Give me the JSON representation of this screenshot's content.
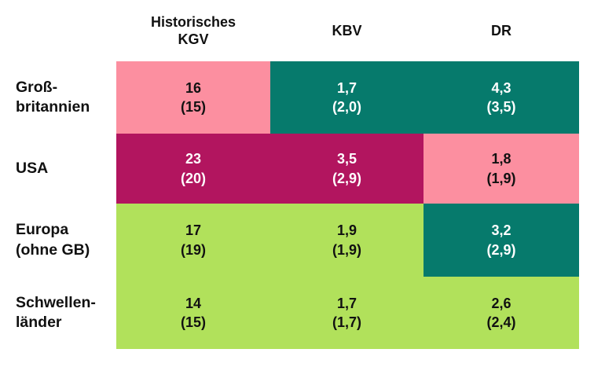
{
  "colors": {
    "pink": {
      "bg": "#FC8FA0",
      "fg": "#111111"
    },
    "magenta": {
      "bg": "#B2155F",
      "fg": "#ffffff"
    },
    "teal": {
      "bg": "#067A6C",
      "fg": "#ffffff"
    },
    "green": {
      "bg": "#B1E15B",
      "fg": "#111111"
    }
  },
  "table": {
    "columns": [
      {
        "label": "Historisches\nKGV"
      },
      {
        "label": "KBV"
      },
      {
        "label": "DR"
      }
    ],
    "rows": [
      {
        "label": "Groß-\nbritannien",
        "cells": [
          {
            "value": "16",
            "prev": "(15)",
            "bg": "pink"
          },
          {
            "value": "1,7",
            "prev": "(2,0)",
            "bg": "teal"
          },
          {
            "value": "4,3",
            "prev": "(3,5)",
            "bg": "teal"
          }
        ]
      },
      {
        "label": "USA",
        "cells": [
          {
            "value": "23",
            "prev": "(20)",
            "bg": "magenta"
          },
          {
            "value": "3,5",
            "prev": "(2,9)",
            "bg": "magenta"
          },
          {
            "value": "1,8",
            "prev": "(1,9)",
            "bg": "pink"
          }
        ]
      },
      {
        "label": "Europa\n(ohne GB)",
        "cells": [
          {
            "value": "17",
            "prev": "(19)",
            "bg": "green"
          },
          {
            "value": "1,9",
            "prev": "(1,9)",
            "bg": "green"
          },
          {
            "value": "3,2",
            "prev": "(2,9)",
            "bg": "teal"
          }
        ]
      },
      {
        "label": "Schwellen-\nländer",
        "cells": [
          {
            "value": "14",
            "prev": "(15)",
            "bg": "green"
          },
          {
            "value": "1,7",
            "prev": "(1,7)",
            "bg": "green"
          },
          {
            "value": "2,6",
            "prev": "(2,4)",
            "bg": "green"
          }
        ]
      }
    ]
  },
  "chart_data": {
    "type": "heatmap",
    "rows": [
      "Großbritannien",
      "USA",
      "Europa (ohne GB)",
      "Schwellenländer"
    ],
    "columns": [
      "Historisches KGV",
      "KBV",
      "DR"
    ],
    "current_values": [
      [
        16,
        1.7,
        4.3
      ],
      [
        23,
        3.5,
        1.8
      ],
      [
        17,
        1.9,
        3.2
      ],
      [
        14,
        1.7,
        2.6
      ]
    ],
    "previous_values": [
      [
        15,
        2.0,
        3.5
      ],
      [
        20,
        2.9,
        1.9
      ],
      [
        19,
        1.9,
        2.9
      ],
      [
        15,
        1.7,
        2.4
      ]
    ],
    "cell_colors": [
      [
        "pink",
        "teal",
        "teal"
      ],
      [
        "magenta",
        "magenta",
        "pink"
      ],
      [
        "green",
        "green",
        "teal"
      ],
      [
        "green",
        "green",
        "green"
      ]
    ],
    "value_format": "current (previous)",
    "decimal_separator": ","
  }
}
